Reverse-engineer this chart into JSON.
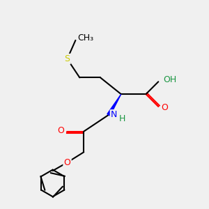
{
  "background_color": "#f0f0f0",
  "atom_colors": {
    "C": "#000000",
    "H": "#1a9641",
    "N": "#0000ff",
    "O": "#ff0000",
    "S": "#cccc00"
  },
  "figsize": [
    3.0,
    3.0
  ],
  "dpi": 100
}
